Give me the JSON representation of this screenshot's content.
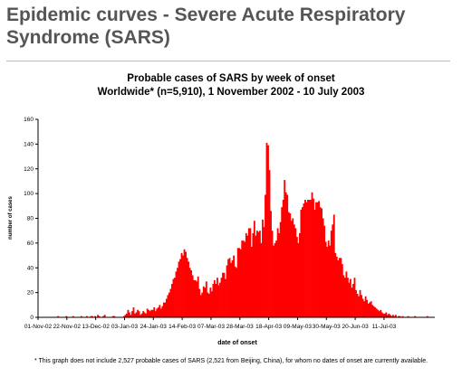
{
  "page": {
    "title": "Epidemic curves - Severe Acute Respiratory Syndrome (SARS)",
    "footnote": "* This graph does not include 2,527 probable cases of SARS (2,521 from Beijing, China), for whom no dates of onset are currently available."
  },
  "colors": {
    "bars": "#ff0000",
    "title": "#555555",
    "axis": "#000000"
  },
  "chart_data": {
    "type": "bar",
    "title": "Probable cases of SARS by week of onset",
    "subtitle": "Worldwide* (n=5,910), 1 November 2002 - 10 July 2003",
    "xlabel": "date of onset",
    "ylabel": "number of cases",
    "ylim": [
      0,
      160
    ],
    "yticks": [
      0,
      20,
      40,
      60,
      80,
      100,
      120,
      140,
      160
    ],
    "xticks": [
      "01-Nov-02",
      "22-Nov-02",
      "13-Dec-02",
      "03-Jan-03",
      "24-Jan-03",
      "14-Feb-03",
      "07-Mar-03",
      "28-Mar-03",
      "18-Apr-03",
      "09-May-03",
      "30-May-03",
      "20-Jun-03",
      "11-Jul-03"
    ],
    "grid": false,
    "legend": "none",
    "x_start": "01-Nov-02",
    "x_end": "11-Jul-03",
    "values": [
      0,
      0,
      0,
      0,
      0,
      0,
      0,
      0,
      0,
      0,
      0,
      0,
      0,
      0,
      1,
      0,
      0,
      0,
      0,
      0,
      1,
      0,
      0,
      0,
      0,
      1,
      0,
      0,
      0,
      0,
      0,
      1,
      0,
      0,
      0,
      1,
      0,
      0,
      1,
      1,
      0,
      1,
      0,
      2,
      1,
      0,
      0,
      1,
      2,
      0,
      0,
      0,
      0,
      0,
      1,
      1,
      0,
      0,
      0,
      0,
      0,
      0,
      1,
      2,
      3,
      6,
      4,
      2,
      5,
      8,
      3,
      4,
      6,
      5,
      2,
      3,
      5,
      4,
      3,
      7,
      6,
      5,
      6,
      6,
      8,
      5,
      7,
      8,
      10,
      7,
      9,
      12,
      12,
      15,
      18,
      20,
      23,
      27,
      31,
      32,
      37,
      40,
      45,
      47,
      52,
      50,
      55,
      53,
      48,
      45,
      40,
      38,
      34,
      30,
      30,
      29,
      33,
      23,
      18,
      20,
      25,
      24,
      29,
      20,
      19,
      24,
      21,
      27,
      30,
      27,
      32,
      26,
      28,
      32,
      36,
      36,
      31,
      42,
      47,
      48,
      44,
      46,
      50,
      41,
      40,
      56,
      56,
      55,
      62,
      62,
      61,
      68,
      66,
      72,
      72,
      57,
      68,
      78,
      66,
      70,
      69,
      70,
      60,
      79,
      73,
      99,
      141,
      139,
      119,
      86,
      70,
      58,
      60,
      62,
      72,
      68,
      77,
      89,
      95,
      111,
      101,
      99,
      85,
      84,
      78,
      80,
      75,
      72,
      65,
      60,
      68,
      87,
      89,
      92,
      95,
      93,
      95,
      95,
      95,
      101,
      96,
      87,
      93,
      93,
      94,
      89,
      88,
      80,
      74,
      61,
      57,
      62,
      58,
      70,
      75,
      83,
      52,
      49,
      46,
      48,
      48,
      43,
      34,
      32,
      37,
      32,
      28,
      31,
      24,
      27,
      32,
      22,
      19,
      17,
      22,
      18,
      15,
      13,
      17,
      14,
      11,
      12,
      13,
      10,
      9,
      8,
      7,
      6,
      5,
      6,
      4,
      3,
      3,
      4,
      2,
      3,
      2,
      1,
      2,
      1,
      2,
      0,
      1,
      1,
      0,
      1,
      0,
      0,
      0,
      1,
      0,
      0,
      0,
      0,
      1,
      0,
      0,
      0,
      0,
      0,
      0,
      0,
      0,
      1,
      0,
      0,
      0,
      0,
      0
    ]
  }
}
